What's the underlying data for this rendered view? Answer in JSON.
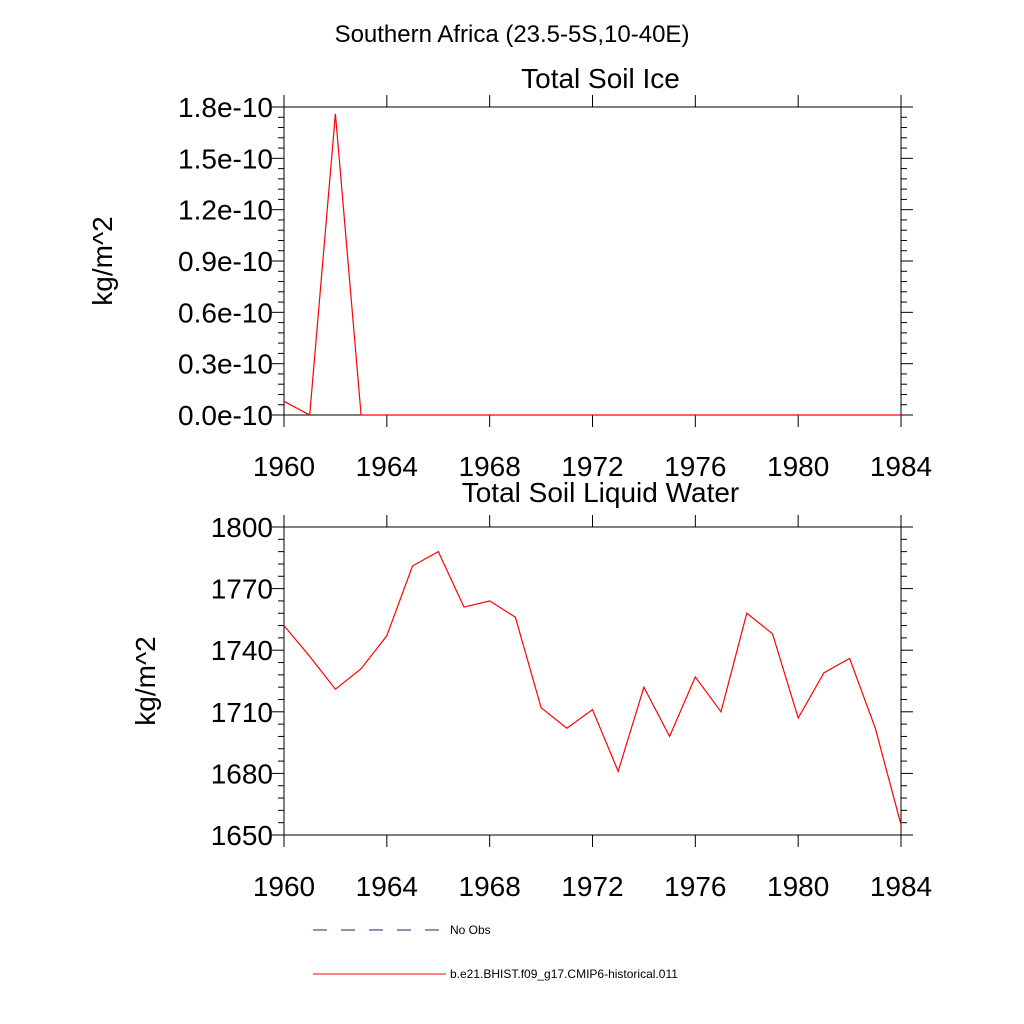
{
  "page": {
    "title": "Southern Africa (23.5-5S,10-40E)"
  },
  "colors": {
    "model": "#ff0000",
    "obs": "#1f2a6b",
    "axis": "#000000"
  },
  "legend": {
    "obs_label": "No Obs",
    "model_label": "b.e21.BHIST.f09_g17.CMIP6-historical.011"
  },
  "chart_data": [
    {
      "type": "line",
      "title": "Total Soil Ice",
      "xlabel": "",
      "ylabel": "kg/m^2",
      "xlim": [
        1960,
        1984
      ],
      "ylim": [
        0,
        1.8e-10
      ],
      "xticks": [
        1960,
        1964,
        1968,
        1972,
        1976,
        1980,
        1984
      ],
      "xtick_labels": [
        "1960",
        "1964",
        "1968",
        "1972",
        "1976",
        "1980",
        "1984"
      ],
      "yticks": [
        0,
        3e-11,
        6e-11,
        9e-11,
        1.2e-10,
        1.5e-10,
        1.8e-10
      ],
      "ytick_labels": [
        "0.0e-10",
        "0.3e-10",
        "0.6e-10",
        "0.9e-10",
        "1.2e-10",
        "1.5e-10",
        "1.8e-10"
      ],
      "x": [
        1960,
        1961,
        1962,
        1963,
        1964,
        1965,
        1966,
        1967,
        1968,
        1969,
        1970,
        1971,
        1972,
        1973,
        1974,
        1975,
        1976,
        1977,
        1978,
        1979,
        1980,
        1981,
        1982,
        1983,
        1984
      ],
      "series": [
        {
          "name": "b.e21.BHIST.f09_g17.CMIP6-historical.011",
          "values": [
            8e-12,
            0,
            1.76e-10,
            0,
            0,
            0,
            0,
            0,
            0,
            0,
            0,
            0,
            0,
            0,
            0,
            0,
            0,
            0,
            0,
            0,
            0,
            0,
            0,
            0,
            0
          ]
        }
      ]
    },
    {
      "type": "line",
      "title": "Total Soil Liquid Water",
      "xlabel": "",
      "ylabel": "kg/m^2",
      "xlim": [
        1960,
        1984
      ],
      "ylim": [
        1650,
        1800
      ],
      "xticks": [
        1960,
        1964,
        1968,
        1972,
        1976,
        1980,
        1984
      ],
      "xtick_labels": [
        "1960",
        "1964",
        "1968",
        "1972",
        "1976",
        "1980",
        "1984"
      ],
      "yticks": [
        1650,
        1680,
        1710,
        1740,
        1770,
        1800
      ],
      "ytick_labels": [
        "1650",
        "1680",
        "1710",
        "1740",
        "1770",
        "1800"
      ],
      "x": [
        1960,
        1961,
        1962,
        1963,
        1964,
        1965,
        1966,
        1967,
        1968,
        1969,
        1970,
        1971,
        1972,
        1973,
        1974,
        1975,
        1976,
        1977,
        1978,
        1979,
        1980,
        1981,
        1982,
        1983,
        1984
      ],
      "series": [
        {
          "name": "b.e21.BHIST.f09_g17.CMIP6-historical.011",
          "values": [
            1752,
            1737,
            1721,
            1731,
            1747,
            1781,
            1788,
            1761,
            1764,
            1756,
            1712,
            1702,
            1711,
            1681,
            1722,
            1698,
            1727,
            1710,
            1758,
            1748,
            1707,
            1729,
            1736,
            1702,
            1655
          ]
        }
      ]
    }
  ]
}
